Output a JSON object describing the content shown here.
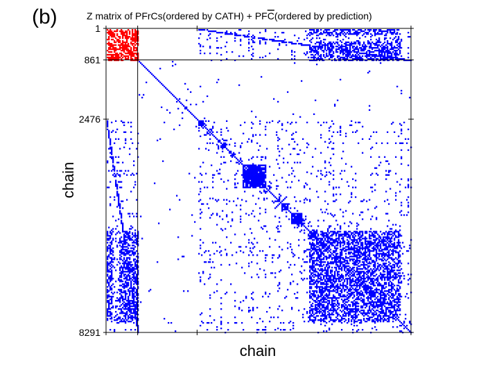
{
  "chart_data": {
    "type": "heatmap",
    "panel_label": "(b)",
    "title_main": "Z matrix of PFrCs(ordered by CATH) + PF",
    "title_overline": "C",
    "title_tail": "(ordered by prediction)",
    "xlabel": "chain",
    "ylabel": "chain",
    "range": [
      1,
      8291
    ],
    "yticks": [
      {
        "value": 1,
        "label": "1"
      },
      {
        "value": 861,
        "label": "861"
      },
      {
        "value": 2476,
        "label": "2476"
      },
      {
        "value": 8291,
        "label": "8291"
      }
    ],
    "xtick_values": [
      1,
      861,
      2476,
      8291
    ],
    "divider_at": 861,
    "colors": {
      "pfrc_block": "#ff0000",
      "contacts": "#0000ff",
      "frame": "#000000"
    },
    "pfrc_range": [
      1,
      861
    ],
    "dense_diagonal_blocks": [
      [
        2476,
        2650
      ],
      [
        3100,
        3250
      ],
      [
        3700,
        4350
      ],
      [
        4750,
        4950
      ],
      [
        5000,
        5300
      ]
    ],
    "dense_offdiagonal_block": [
      5500,
      8000
    ],
    "symmetric": true
  }
}
